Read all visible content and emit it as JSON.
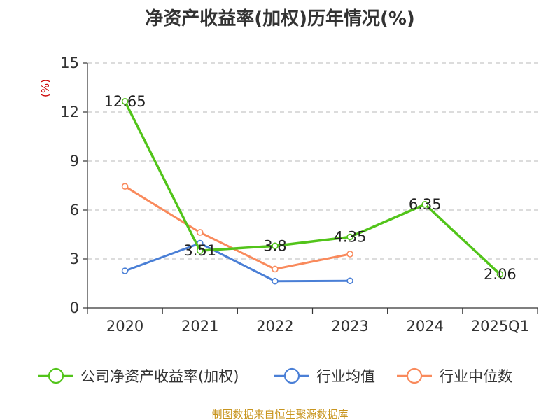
{
  "chart_data": {
    "type": "line",
    "title": "净资产收益率(加权)历年情况(%)",
    "ylabel": "(%)",
    "categories": [
      "2020",
      "2021",
      "2022",
      "2023",
      "2024",
      "2025Q1"
    ],
    "yticks": [
      "0",
      "3",
      "6",
      "9",
      "12",
      "15"
    ],
    "ylim": [
      0,
      15
    ],
    "grid": true,
    "legend_position": "bottom",
    "series": [
      {
        "name": "公司净资产收益率(加权)",
        "color": "#52c41a",
        "values": [
          12.65,
          3.51,
          3.8,
          4.35,
          6.35,
          2.06
        ],
        "labels": [
          "12.65",
          "3.51",
          "3.8",
          "4.35",
          "6.35",
          "2.06"
        ]
      },
      {
        "name": "行业均值",
        "color": "#4a7fd6",
        "values": [
          2.27,
          3.96,
          1.64,
          1.66,
          null,
          null
        ]
      },
      {
        "name": "行业中位数",
        "color": "#f98a5c",
        "values": [
          7.45,
          4.63,
          2.38,
          3.3,
          null,
          null
        ]
      }
    ]
  },
  "source": "制图数据来自恒生聚源数据库"
}
